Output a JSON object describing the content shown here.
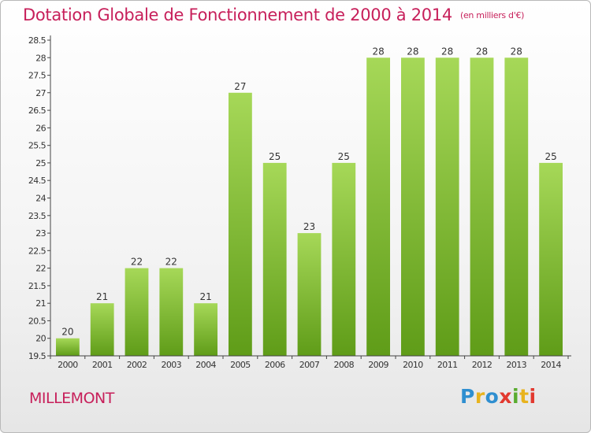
{
  "header": {
    "title": "Dotation Globale de Fonctionnement de 2000 à 2014",
    "unit": "(en milliers d'€)"
  },
  "footer": {
    "commune": "MILLEMONT",
    "logo_letters": [
      "P",
      "r",
      "o",
      "x",
      "i",
      "t",
      "i"
    ]
  },
  "colors": {
    "title": "#c71f5a",
    "bar_top": "#a6d858",
    "bar_bottom": "#5f9c18",
    "axis": "#444444"
  },
  "chart_data": {
    "type": "bar",
    "title": "Dotation Globale de Fonctionnement de 2000 à 2014",
    "subtitle": "(en milliers d'€)",
    "xlabel": "",
    "ylabel": "",
    "categories": [
      "2000",
      "2001",
      "2002",
      "2003",
      "2004",
      "2005",
      "2006",
      "2007",
      "2008",
      "2009",
      "2010",
      "2011",
      "2012",
      "2013",
      "2014"
    ],
    "values": [
      20,
      21,
      22,
      22,
      21,
      27,
      25,
      23,
      25,
      28,
      28,
      28,
      28,
      28,
      25
    ],
    "ylim": [
      19.5,
      28.5
    ],
    "yticks": [
      "19.5",
      "20",
      "20.5",
      "21",
      "21.5",
      "22",
      "22.5",
      "23",
      "23.5",
      "24",
      "24.5",
      "25",
      "25.5",
      "26",
      "26.5",
      "27",
      "27.5",
      "28",
      "28.5"
    ],
    "grid": false,
    "legend": "none"
  }
}
